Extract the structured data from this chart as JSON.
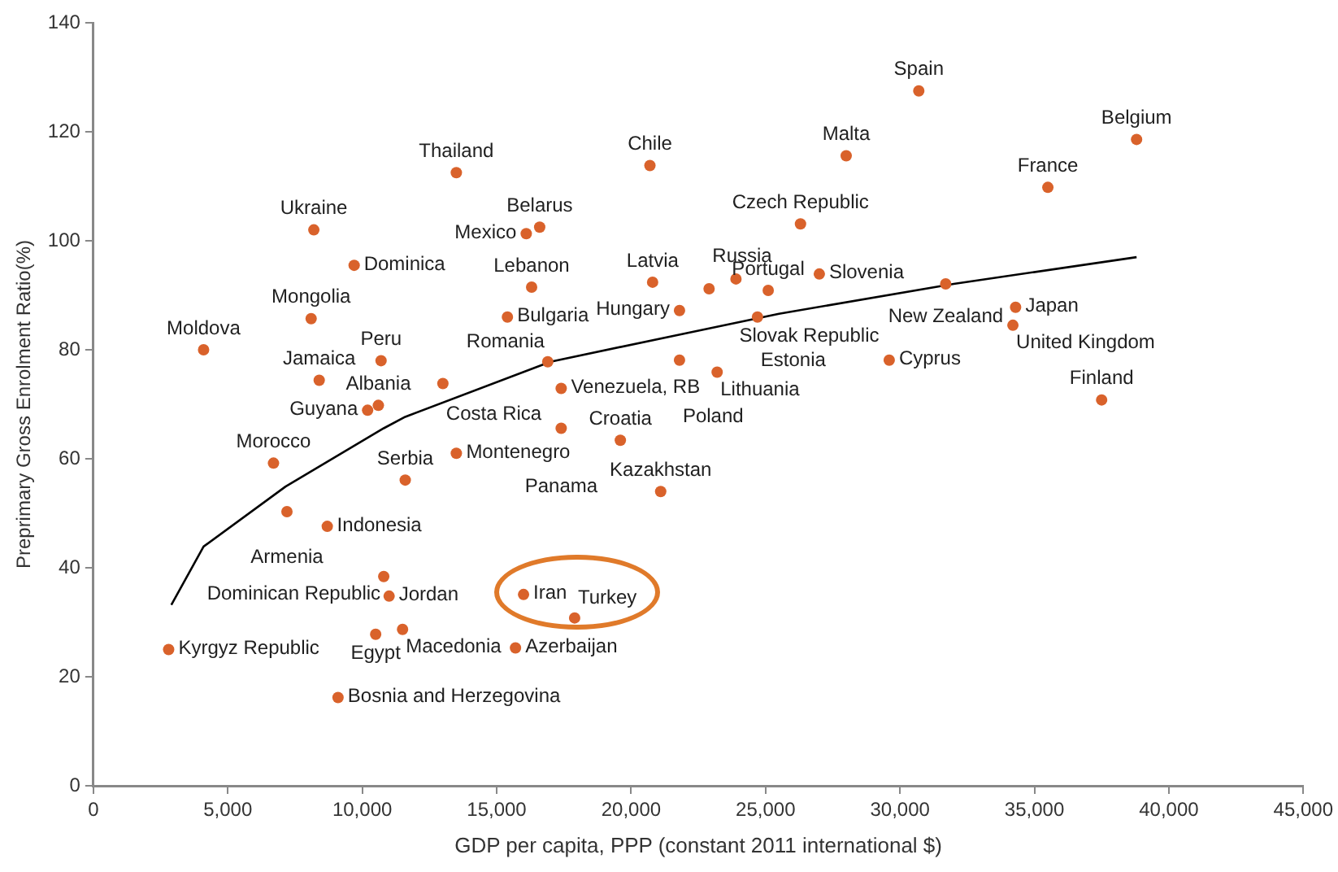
{
  "chart_data": {
    "type": "scatter",
    "xlabel": "GDP per capita, PPP (constant 2011 international $)",
    "ylabel": "Preprimary Gross Enrolment Ratio(%)",
    "xlim": [
      0,
      45000
    ],
    "ylim": [
      0,
      140
    ],
    "xticks": [
      0,
      {
        "value": 5000,
        "label": "5,000"
      },
      {
        "value": 10000,
        "label": "10,000"
      },
      {
        "value": 15000,
        "label": "15,000"
      },
      {
        "value": 20000,
        "label": "20,000"
      },
      {
        "value": 25000,
        "label": "25,000"
      },
      {
        "value": 30000,
        "label": "30,000"
      },
      {
        "value": 35000,
        "label": "35,000"
      },
      {
        "value": 40000,
        "label": "40,000"
      },
      {
        "value": 45000,
        "label": "45,000"
      }
    ],
    "yticks": [
      0,
      20,
      40,
      60,
      80,
      100,
      120,
      140
    ],
    "grid": false,
    "legend": false,
    "marker": "circle",
    "series": [
      {
        "color": "#d9622b",
        "x": [
          2800,
          4100,
          8200,
          9700,
          8100,
          8400,
          10700,
          10200,
          10600,
          13000,
          6700,
          7200,
          8700,
          10800,
          11000,
          11500,
          10500,
          9100,
          11600,
          13500,
          13500,
          16600,
          16100,
          16300,
          15400,
          16900,
          17400,
          17400,
          19600,
          21100,
          16000,
          17900,
          15700,
          20700,
          28000,
          26300,
          20800,
          21800,
          22900,
          23900,
          25100,
          27000,
          24700,
          21800,
          23200,
          29600,
          30700,
          38800,
          35500,
          31700,
          34300,
          34200,
          37500
        ],
        "values": [
          25,
          80,
          102,
          95.5,
          85.7,
          74.4,
          78,
          68.9,
          69.8,
          73.8,
          59.2,
          50.3,
          47.6,
          38.4,
          34.8,
          28.7,
          27.8,
          16.2,
          56.1,
          61,
          112.5,
          102.5,
          101.3,
          91.5,
          86,
          77.8,
          72.9,
          65.6,
          63.4,
          54,
          35.1,
          30.8,
          25.3,
          113.8,
          115.6,
          103.1,
          92.4,
          87.2,
          91.2,
          93,
          90.9,
          93.9,
          86,
          78.1,
          75.9,
          78.1,
          127.5,
          118.6,
          109.8,
          92.1,
          87.8,
          84.5,
          70.8
        ]
      },
      {
        "type": "line",
        "color": "#000000",
        "marker": "none",
        "x": [
          2900,
          4100,
          7150,
          10800,
          11600,
          17000,
          22000,
          25500,
          32000,
          38800
        ],
        "values": [
          33.2,
          43.9,
          54.9,
          65.6,
          67.7,
          77.8,
          83,
          86.6,
          92.1,
          97
        ]
      }
    ],
    "annotations": [
      {
        "text": "Kyrgyz Republic",
        "x": 2800,
        "y": 25
      },
      {
        "text": "Moldova",
        "x": 4100,
        "y": 80
      },
      {
        "text": "Ukraine",
        "x": 8200,
        "y": 102
      },
      {
        "text": "Dominica",
        "x": 9700,
        "y": 95.5
      },
      {
        "text": "Mongolia",
        "x": 8100,
        "y": 85.7
      },
      {
        "text": "Jamaica",
        "x": 8400,
        "y": 74.4
      },
      {
        "text": "Peru",
        "x": 10700,
        "y": 78
      },
      {
        "text": "Guyana",
        "x": 10200,
        "y": 68.9
      },
      {
        "text": "Albania",
        "x": 10600,
        "y": 69.8
      },
      {
        "text": "Costa Rica",
        "x": 13000,
        "y": 73.8
      },
      {
        "text": "Morocco",
        "x": 6700,
        "y": 59.2
      },
      {
        "text": "Armenia",
        "x": 7200,
        "y": 50.3
      },
      {
        "text": "Indonesia",
        "x": 8700,
        "y": 47.6
      },
      {
        "text": "Dominican Republic",
        "x": 10800,
        "y": 38.4
      },
      {
        "text": "Jordan",
        "x": 11000,
        "y": 34.8
      },
      {
        "text": "Macedonia",
        "x": 11500,
        "y": 28.7
      },
      {
        "text": "Egypt",
        "x": 10500,
        "y": 27.8
      },
      {
        "text": "Bosnia and Herzegovina",
        "x": 9100,
        "y": 16.2
      },
      {
        "text": "Serbia",
        "x": 11600,
        "y": 56.1
      },
      {
        "text": "Montenegro",
        "x": 13500,
        "y": 61
      },
      {
        "text": "Thailand",
        "x": 13500,
        "y": 112.5
      },
      {
        "text": "Belarus",
        "x": 16600,
        "y": 102.5
      },
      {
        "text": "Mexico",
        "x": 16100,
        "y": 101.3
      },
      {
        "text": "Lebanon",
        "x": 16300,
        "y": 91.5
      },
      {
        "text": "Bulgaria",
        "x": 15400,
        "y": 86
      },
      {
        "text": "Romania",
        "x": 16900,
        "y": 77.8
      },
      {
        "text": "Venezuela, RB",
        "x": 17400,
        "y": 72.9
      },
      {
        "text": "Panama",
        "x": 17400,
        "y": 65.6
      },
      {
        "text": "Croatia",
        "x": 19600,
        "y": 63.4
      },
      {
        "text": "Kazakhstan",
        "x": 21100,
        "y": 54
      },
      {
        "text": "Iran",
        "x": 16000,
        "y": 35.1
      },
      {
        "text": "Turkey",
        "x": 17900,
        "y": 30.8
      },
      {
        "text": "Azerbaijan",
        "x": 15700,
        "y": 25.3
      },
      {
        "text": "Chile",
        "x": 20700,
        "y": 113.8
      },
      {
        "text": "Malta",
        "x": 28000,
        "y": 115.6
      },
      {
        "text": "Czech Republic",
        "x": 26300,
        "y": 103.1
      },
      {
        "text": "Latvia",
        "x": 20800,
        "y": 92.4
      },
      {
        "text": "Hungary",
        "x": 21800,
        "y": 87.2
      },
      {
        "text": "Russia",
        "x": 22900,
        "y": 91.2
      },
      {
        "text": "Slovak Republic",
        "x": 23900,
        "y": 93
      },
      {
        "text": "Portugal",
        "x": 25100,
        "y": 90.9
      },
      {
        "text": "Slovenia",
        "x": 27000,
        "y": 93.9
      },
      {
        "text": "Estonia",
        "x": 24700,
        "y": 86
      },
      {
        "text": "Poland",
        "x": 21800,
        "y": 78.1
      },
      {
        "text": "Lithuania",
        "x": 23200,
        "y": 75.9
      },
      {
        "text": "Cyprus",
        "x": 29600,
        "y": 78.1
      },
      {
        "text": "Spain",
        "x": 30700,
        "y": 127.5
      },
      {
        "text": "Belgium",
        "x": 38800,
        "y": 118.6
      },
      {
        "text": "France",
        "x": 35500,
        "y": 109.8
      },
      {
        "text": "New Zealand",
        "x": 31700,
        "y": 92.1
      },
      {
        "text": "Japan",
        "x": 34300,
        "y": 87.8
      },
      {
        "text": "United Kingdom",
        "x": 34200,
        "y": 84.5
      },
      {
        "text": "Finland",
        "x": 37500,
        "y": 70.8
      }
    ]
  }
}
